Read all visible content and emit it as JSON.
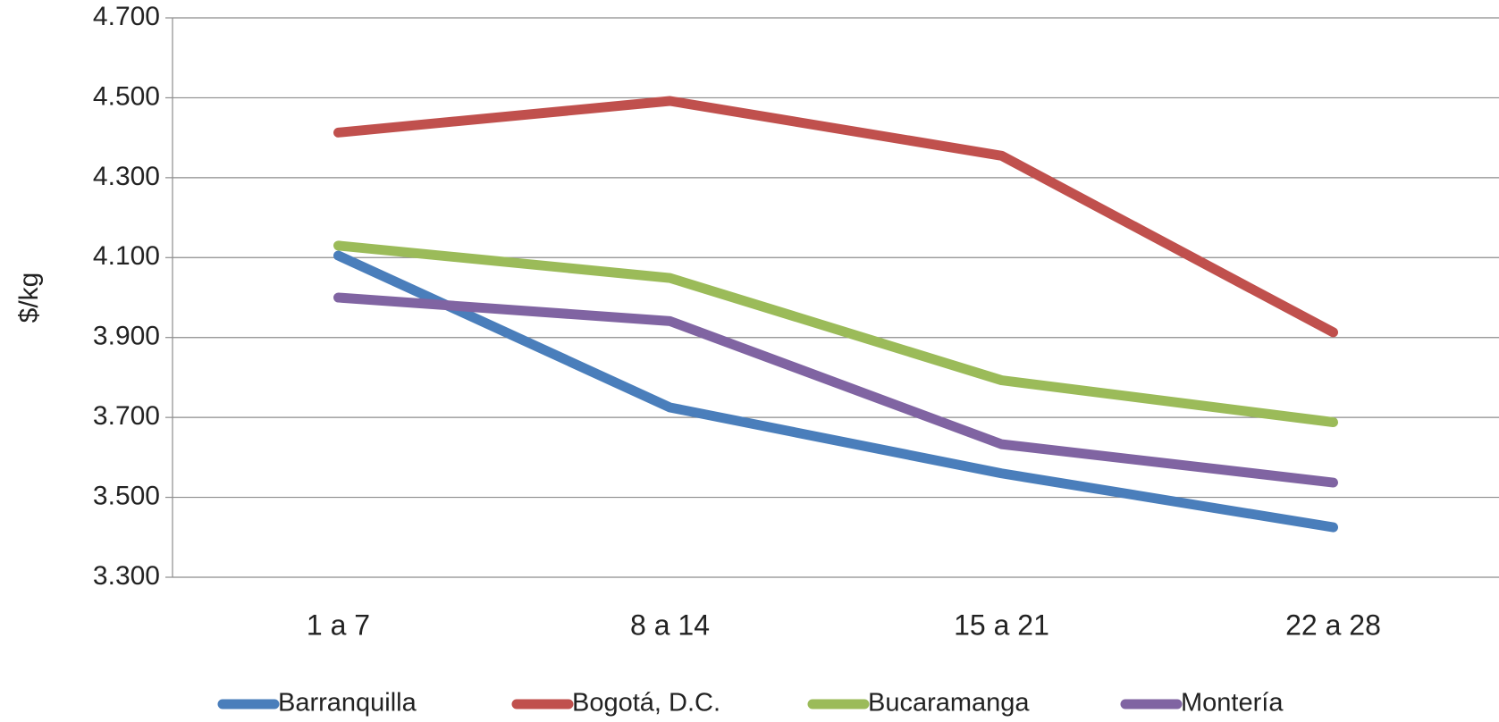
{
  "chart_data": {
    "type": "line",
    "y_label": "$/kg",
    "categories": [
      "1 a 7",
      "8 a 14",
      "15 a 21",
      "22 a 28"
    ],
    "series": [
      {
        "name": "Barranquilla",
        "color": "#4a7ebb",
        "values": [
          4105,
          3725,
          3560,
          3425
        ]
      },
      {
        "name": "Bogotá, D.C.",
        "color": "#c0504d",
        "values": [
          4413,
          4492,
          4355,
          3913
        ]
      },
      {
        "name": "Bucaramanga",
        "color": "#9bbb59",
        "values": [
          4130,
          4049,
          3793,
          3688
        ]
      },
      {
        "name": "Montería",
        "color": "#8064a2",
        "values": [
          4000,
          3941,
          3633,
          3537
        ]
      }
    ],
    "ylim": [
      3300,
      4700
    ],
    "yticks": [
      {
        "value": 3300,
        "label": "3.300"
      },
      {
        "value": 3500,
        "label": "3.500"
      },
      {
        "value": 3700,
        "label": "3.700"
      },
      {
        "value": 3900,
        "label": "3.900"
      },
      {
        "value": 4100,
        "label": "4.100"
      },
      {
        "value": 4300,
        "label": "4.300"
      },
      {
        "value": 4500,
        "label": "4.500"
      },
      {
        "value": 4700,
        "label": "4.700"
      }
    ],
    "grid": true,
    "legend": "bottom"
  }
}
